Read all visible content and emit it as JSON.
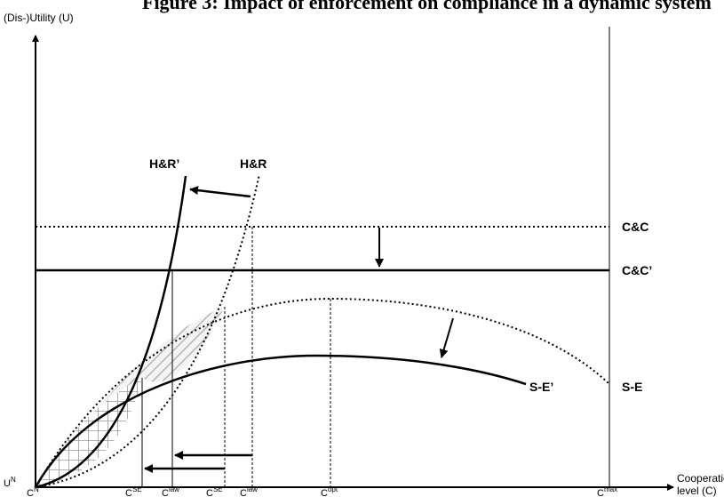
{
  "title": "Figure 3: Impact of enforcement on compliance in a dynamic system",
  "y_axis_label": "(Dis-)Utility (U)",
  "x_axis_label_line1": "Cooperation",
  "x_axis_label_line2": "level (C)",
  "origin_label": {
    "main": "U",
    "sup": "N"
  },
  "curve_labels": {
    "hr_prime": "H&R’",
    "hr": "H&R",
    "cc": "C&C",
    "cc_prime": "C&C’",
    "se_prime": "S-E’",
    "se": "S-E"
  },
  "x_ticks": [
    {
      "main": "C",
      "sup": "N"
    },
    {
      "main": "C",
      "sup": "SE’"
    },
    {
      "main": "C",
      "sup": "law’"
    },
    {
      "main": "C",
      "sup": "SE"
    },
    {
      "main": "C",
      "sup": "law"
    },
    {
      "main": "C",
      "sup": "opt"
    },
    {
      "main": "C",
      "sup": "max"
    }
  ]
}
